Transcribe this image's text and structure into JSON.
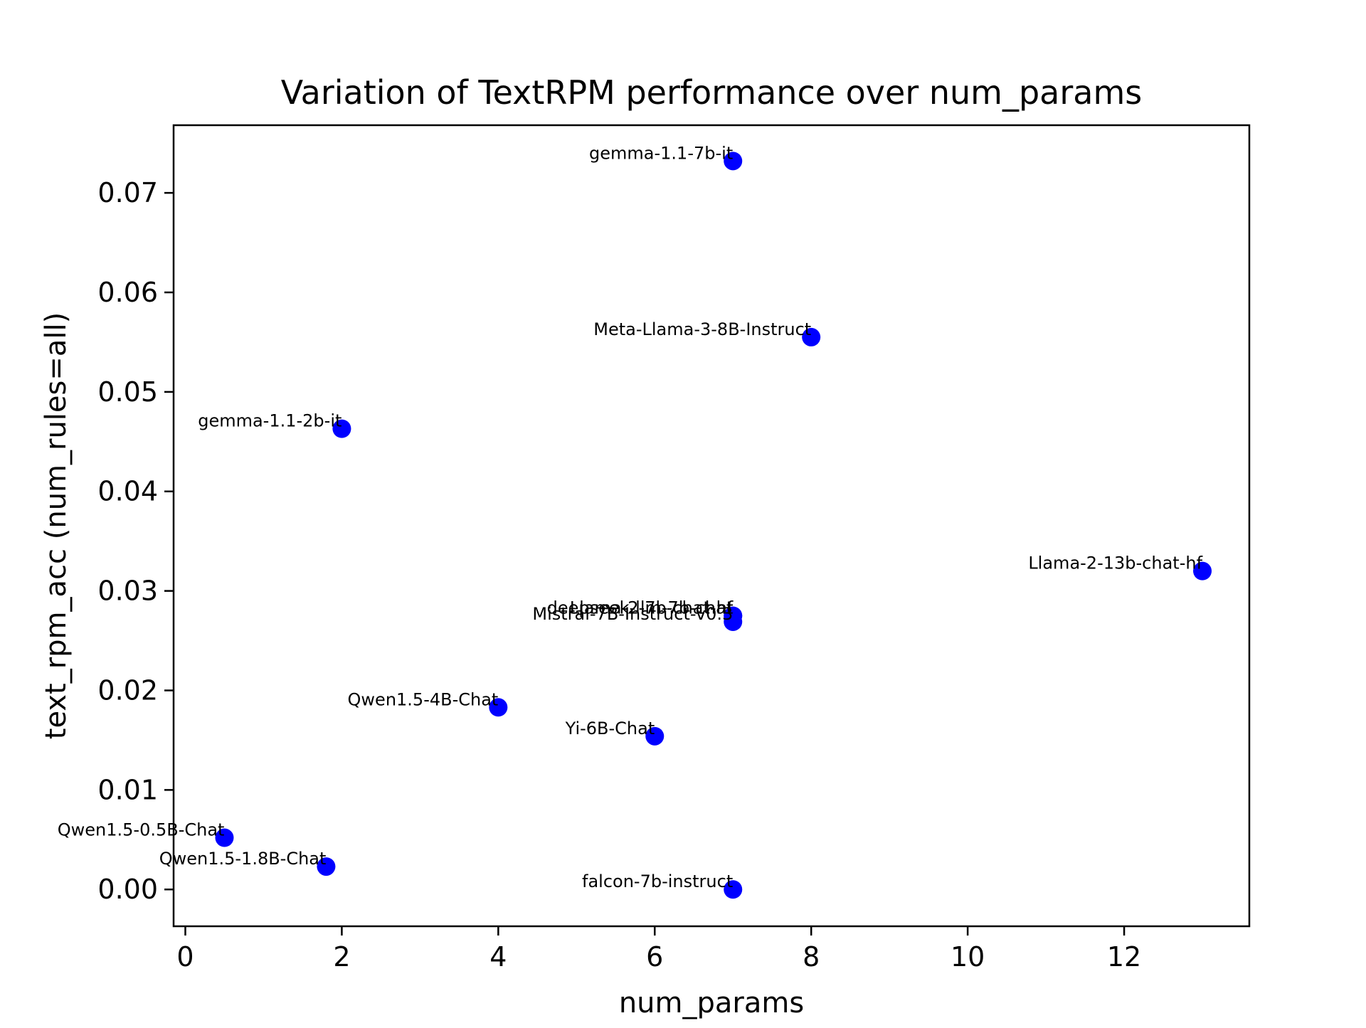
{
  "chart_data": {
    "type": "scatter",
    "title": "Variation of TextRPM performance over num_params",
    "xlabel": "num_params",
    "ylabel": "text_rpm_acc (num_rules=all)",
    "xlim": [
      -0.15,
      13.6
    ],
    "ylim": [
      -0.0037,
      0.0768
    ],
    "xticks": [
      0,
      2,
      4,
      6,
      8,
      10,
      12
    ],
    "yticks": [
      0.0,
      0.01,
      0.02,
      0.03,
      0.04,
      0.05,
      0.06,
      0.07
    ],
    "xtick_labels": [
      "0",
      "2",
      "4",
      "6",
      "8",
      "10",
      "12"
    ],
    "ytick_labels": [
      "0.00",
      "0.01",
      "0.02",
      "0.03",
      "0.04",
      "0.05",
      "0.06",
      "0.07"
    ],
    "grid": false,
    "marker_color": "#0000ff",
    "points": [
      {
        "label": "gemma-1.1-7b-it",
        "x": 7,
        "y": 0.0732
      },
      {
        "label": "Meta-Llama-3-8B-Instruct",
        "x": 8,
        "y": 0.0555
      },
      {
        "label": "gemma-1.1-2b-it",
        "x": 2,
        "y": 0.0463
      },
      {
        "label": "Llama-2-13b-chat-hf",
        "x": 13,
        "y": 0.032
      },
      {
        "label": "deepseek-llm-7b-chat",
        "x": 7,
        "y": 0.0275
      },
      {
        "label": "Llama-2-7b-chat-hf",
        "x": 7,
        "y": 0.0275
      },
      {
        "label": "Mistral-7B-Instruct-v0.3",
        "x": 7,
        "y": 0.0269
      },
      {
        "label": "Qwen1.5-4B-Chat",
        "x": 4,
        "y": 0.0183
      },
      {
        "label": "Yi-6B-Chat",
        "x": 6,
        "y": 0.0154
      },
      {
        "label": "Qwen1.5-0.5B-Chat",
        "x": 0.5,
        "y": 0.0052
      },
      {
        "label": "Qwen1.5-1.8B-Chat",
        "x": 1.8,
        "y": 0.0023
      },
      {
        "label": "falcon-7b-instruct",
        "x": 7,
        "y": 0.0
      }
    ]
  }
}
